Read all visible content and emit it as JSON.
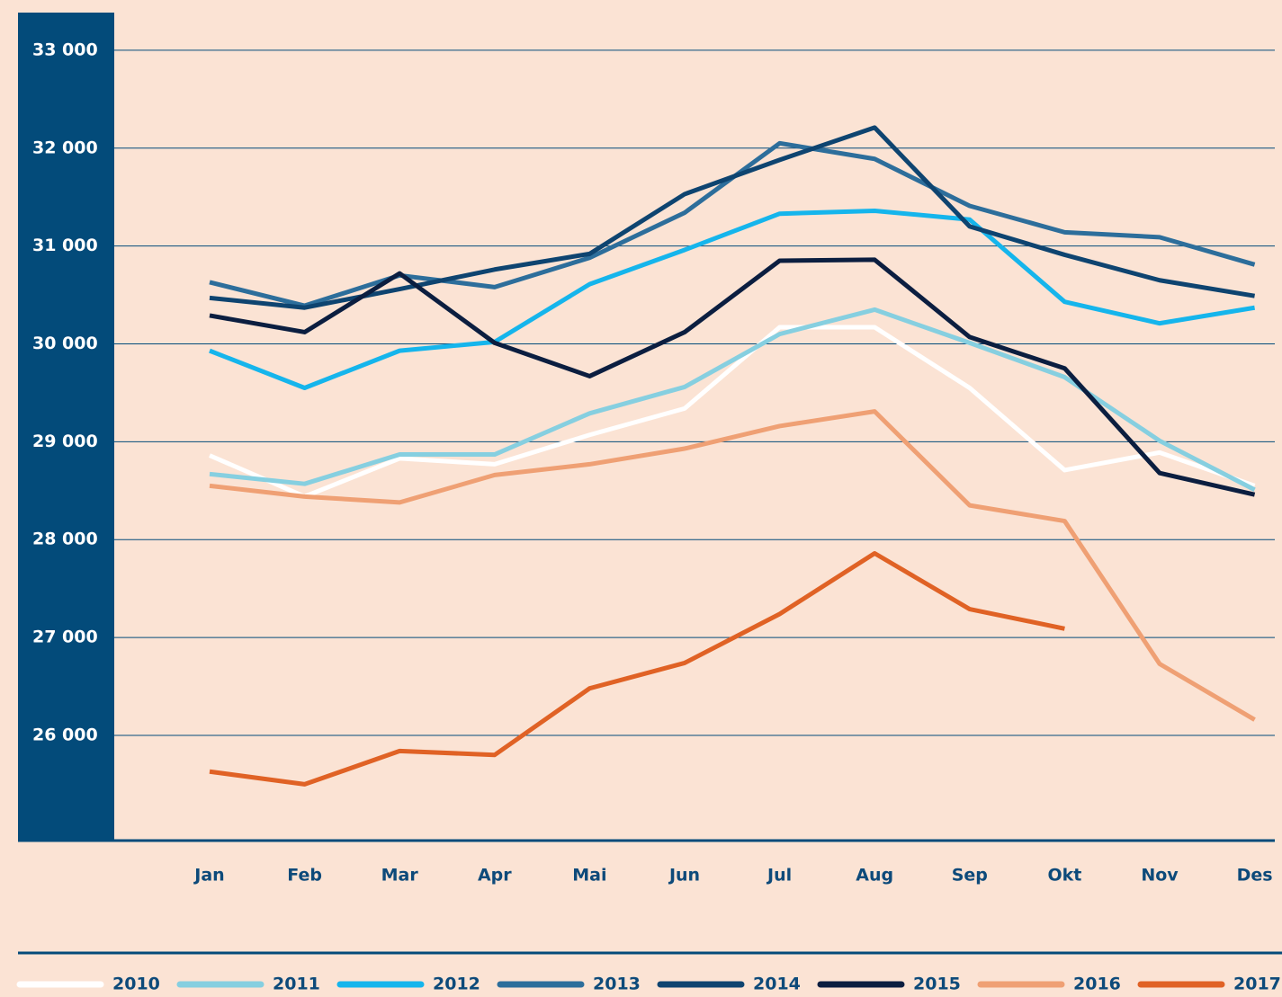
{
  "chart_data": {
    "type": "line",
    "categories": [
      "Jan",
      "Feb",
      "Mar",
      "Apr",
      "Mai",
      "Jun",
      "Jul",
      "Aug",
      "Sep",
      "Okt",
      "Nov",
      "Des"
    ],
    "series": [
      {
        "name": "2010",
        "color": "#ffffff",
        "values": [
          28860,
          28440,
          28830,
          28770,
          29070,
          29340,
          30170,
          30170,
          29550,
          28710,
          28890,
          28550
        ]
      },
      {
        "name": "2011",
        "color": "#86cfe0",
        "values": [
          28670,
          28570,
          28870,
          28870,
          29290,
          29560,
          30100,
          30350,
          30010,
          29660,
          29010,
          28510
        ]
      },
      {
        "name": "2012",
        "color": "#15b5ec",
        "values": [
          29930,
          29550,
          29930,
          30020,
          30610,
          30960,
          31330,
          31360,
          31270,
          30430,
          30210,
          30370
        ]
      },
      {
        "name": "2013",
        "color": "#2d6e9b",
        "values": [
          30630,
          30390,
          30700,
          30580,
          30880,
          31340,
          32050,
          31890,
          31410,
          31140,
          31090,
          30810
        ]
      },
      {
        "name": "2014",
        "color": "#0e4470",
        "values": [
          30470,
          30370,
          30560,
          30760,
          30920,
          31530,
          31880,
          32210,
          31200,
          30910,
          30650,
          30490
        ]
      },
      {
        "name": "2015",
        "color": "#0b1e40",
        "values": [
          30290,
          30120,
          30720,
          30010,
          29670,
          30120,
          30850,
          30860,
          30070,
          29750,
          28680,
          28460
        ]
      },
      {
        "name": "2016",
        "color": "#efa074",
        "values": [
          28550,
          28440,
          28380,
          28660,
          28770,
          28930,
          29160,
          29310,
          28350,
          28190,
          26730,
          26160
        ]
      },
      {
        "name": "2017",
        "color": "#e06225",
        "values": [
          25630,
          25500,
          25840,
          25800,
          26480,
          26740,
          27240,
          27860,
          27290,
          27090,
          null,
          null
        ]
      }
    ],
    "ylim": [
      24925,
      33385
    ],
    "yticks": [
      {
        "value": 26000,
        "label": "26 000"
      },
      {
        "value": 27000,
        "label": "27 000"
      },
      {
        "value": 28000,
        "label": "28 000"
      },
      {
        "value": 29000,
        "label": "29 000"
      },
      {
        "value": 30000,
        "label": "30 000"
      },
      {
        "value": 31000,
        "label": "31 000"
      },
      {
        "value": 32000,
        "label": "32 000"
      },
      {
        "value": 33000,
        "label": "33 000"
      }
    ],
    "grid": true
  }
}
